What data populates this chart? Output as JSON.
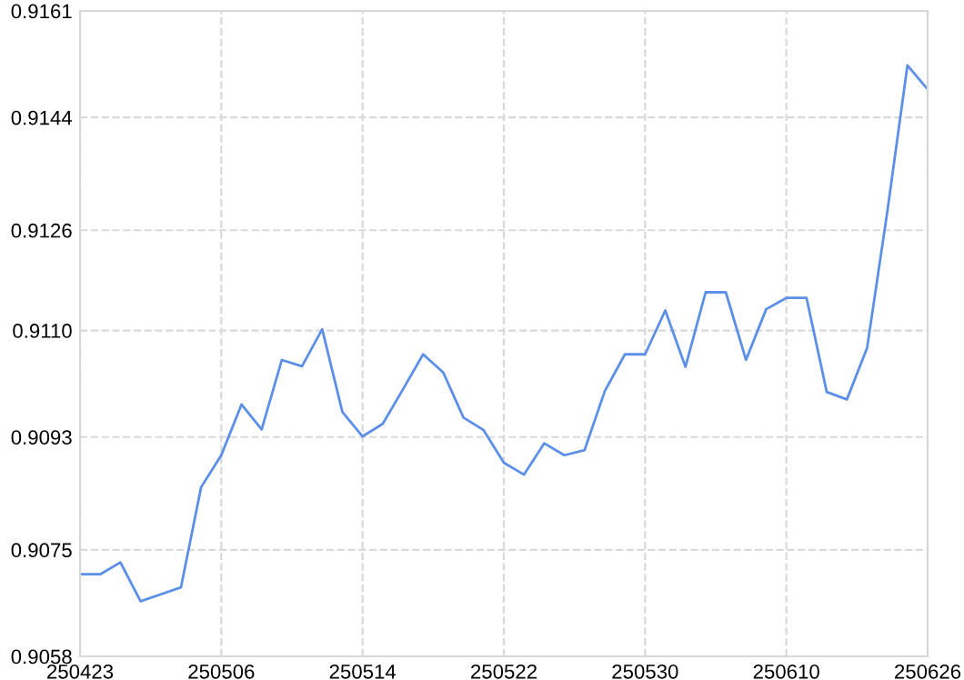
{
  "chart_data": {
    "type": "line",
    "categories": [
      "250423",
      null,
      null,
      null,
      null,
      null,
      null,
      "250506",
      null,
      null,
      null,
      null,
      null,
      null,
      "250514",
      null,
      null,
      null,
      null,
      null,
      null,
      "250522",
      null,
      null,
      null,
      null,
      null,
      null,
      "250530",
      null,
      null,
      null,
      null,
      null,
      null,
      "250610",
      null,
      null,
      null,
      null,
      null,
      null,
      "250626"
    ],
    "series": [
      {
        "color": "#5b8fe8",
        "values": [
          0.90711,
          0.90711,
          0.9073,
          0.90668,
          0.90679,
          0.9069,
          0.9085,
          0.90901,
          0.90982,
          0.90942,
          0.91053,
          0.91043,
          0.91102,
          0.9097,
          0.90931,
          0.90951,
          0.91006,
          0.91062,
          0.91033,
          0.90961,
          0.90941,
          0.90889,
          0.9087,
          0.9092,
          0.90901,
          0.90909,
          0.91003,
          0.91062,
          0.91062,
          0.91132,
          0.91042,
          0.91161,
          0.91161,
          0.91053,
          0.91134,
          0.91152,
          0.91152,
          0.91002,
          0.9099,
          0.91072,
          0.91289,
          0.91523,
          0.91485
        ]
      }
    ],
    "ylim": [
      0.9058,
      0.9161
    ],
    "yticks": [
      0.9058,
      0.9075,
      0.9093,
      {
        "value": 0.911,
        "label": "0.9110"
      },
      0.9126,
      0.9144,
      0.9161
    ],
    "grid": true,
    "line_style": "solid",
    "marker": "none"
  }
}
